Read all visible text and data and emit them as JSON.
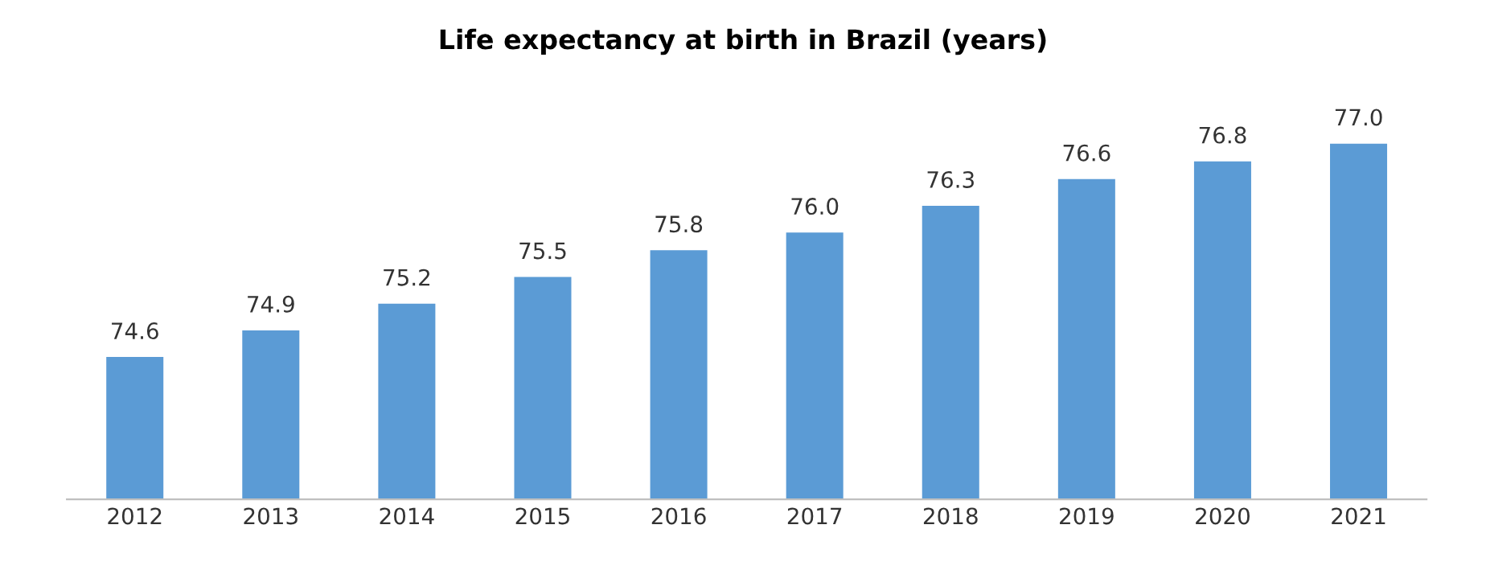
{
  "chart_data": {
    "type": "bar",
    "title": "Life expectancy at birth in Brazil (years)",
    "categories": [
      "2012",
      "2013",
      "2014",
      "2015",
      "2016",
      "2017",
      "2018",
      "2019",
      "2020",
      "2021"
    ],
    "values": [
      74.6,
      74.9,
      75.2,
      75.5,
      75.8,
      76.0,
      76.3,
      76.6,
      76.8,
      77.0
    ],
    "value_labels": [
      "74.6",
      "74.9",
      "75.2",
      "75.5",
      "75.8",
      "76.0",
      "76.3",
      "76.6",
      "76.8",
      "77.0"
    ],
    "color": "#5b9bd5",
    "ylim": [
      73,
      77.0
    ],
    "tick_labels": "x",
    "grid": false,
    "legend": false
  }
}
